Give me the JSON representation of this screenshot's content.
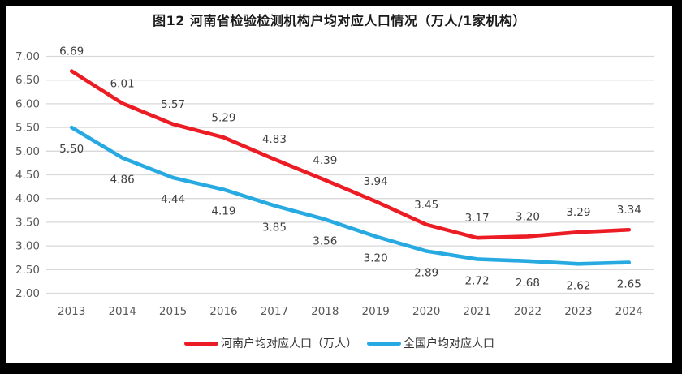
{
  "styles": {
    "frame_border_color": "#000000",
    "background_color": "#FFFFFF",
    "gridline_color": "#D9D9D9",
    "axis_text_color": "#595959",
    "data_label_color": "#404040",
    "title_color": "#1A1A1A"
  },
  "chart_data": {
    "type": "line",
    "title": "图12  河南省检验检测机构户均对应人口情况（万人/1家机构）",
    "xlabel": "",
    "ylabel": "",
    "categories": [
      "2013",
      "2014",
      "2015",
      "2016",
      "2017",
      "2018",
      "2019",
      "2020",
      "2021",
      "2022",
      "2023",
      "2024"
    ],
    "y_ticks": [
      "7.00",
      "6.50",
      "6.00",
      "5.50",
      "5.00",
      "4.50",
      "4.00",
      "3.50",
      "3.00",
      "2.50",
      "2.00"
    ],
    "ylim": [
      2.0,
      7.0
    ],
    "grid": true,
    "legend_position": "bottom",
    "series": [
      {
        "name": "河南户均对应人口（万人）",
        "color": "#EC1C24",
        "label_position": "above",
        "values": [
          6.69,
          6.01,
          5.57,
          5.29,
          4.83,
          4.39,
          3.94,
          3.45,
          3.17,
          3.2,
          3.29,
          3.34
        ]
      },
      {
        "name": "全国户均对应人口",
        "color": "#27AAE1",
        "label_position": "below",
        "values": [
          5.5,
          4.86,
          4.44,
          4.19,
          3.85,
          3.56,
          3.2,
          2.89,
          2.72,
          2.68,
          2.62,
          2.65
        ]
      }
    ]
  }
}
